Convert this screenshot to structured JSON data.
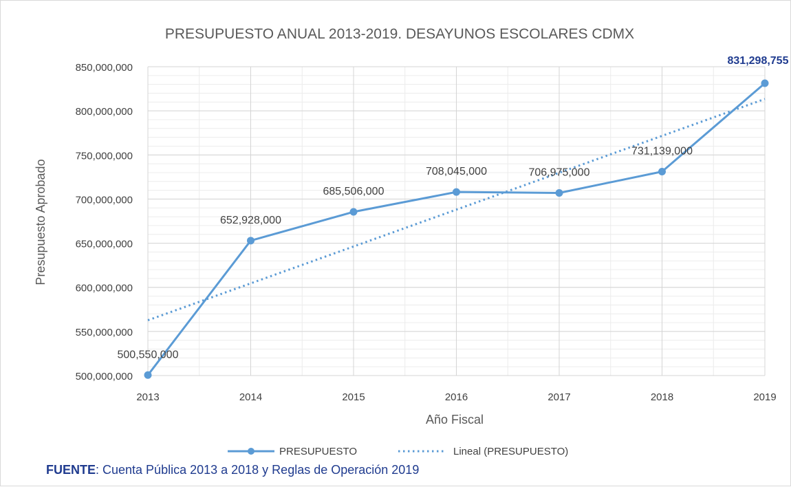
{
  "chart_data": {
    "type": "line",
    "title": "PRESUPUESTO ANUAL 2013-2019.  DESAYUNOS ESCOLARES CDMX",
    "xlabel": "Año Fiscal",
    "ylabel": "Presupuesto Aprobado",
    "ylim": [
      500000000,
      850000000
    ],
    "ytick_step": 50000000,
    "y_tick_labels": [
      "500,000,000",
      "550,000,000",
      "600,000,000",
      "650,000,000",
      "700,000,000",
      "750,000,000",
      "800,000,000",
      "850,000,000"
    ],
    "categories": [
      "2013",
      "2014",
      "2015",
      "2016",
      "2017",
      "2018",
      "2019"
    ],
    "series": [
      {
        "name": "PRESUPUESTO",
        "values": [
          500550000,
          652928000,
          685506000,
          708045000,
          706975000,
          731139000,
          831298755
        ],
        "data_labels": [
          "500,550,000",
          "652,928,000",
          "685,506,000",
          "708,045,000",
          "706,975,000",
          "731,139,000",
          "831,298,755"
        ],
        "color": "#5b9bd5"
      },
      {
        "name": "Lineal (PRESUPUESTO)",
        "kind": "linear-trendline",
        "color": "#5b9bd5"
      }
    ],
    "last_label_color": "#1f3b8f",
    "grid": true,
    "minor_grid": true,
    "legend": "bottom"
  },
  "source": {
    "label": "FUENTE",
    "text": ": Cuenta Pública 2013 a 2018 y Reglas de Operación 2019"
  }
}
